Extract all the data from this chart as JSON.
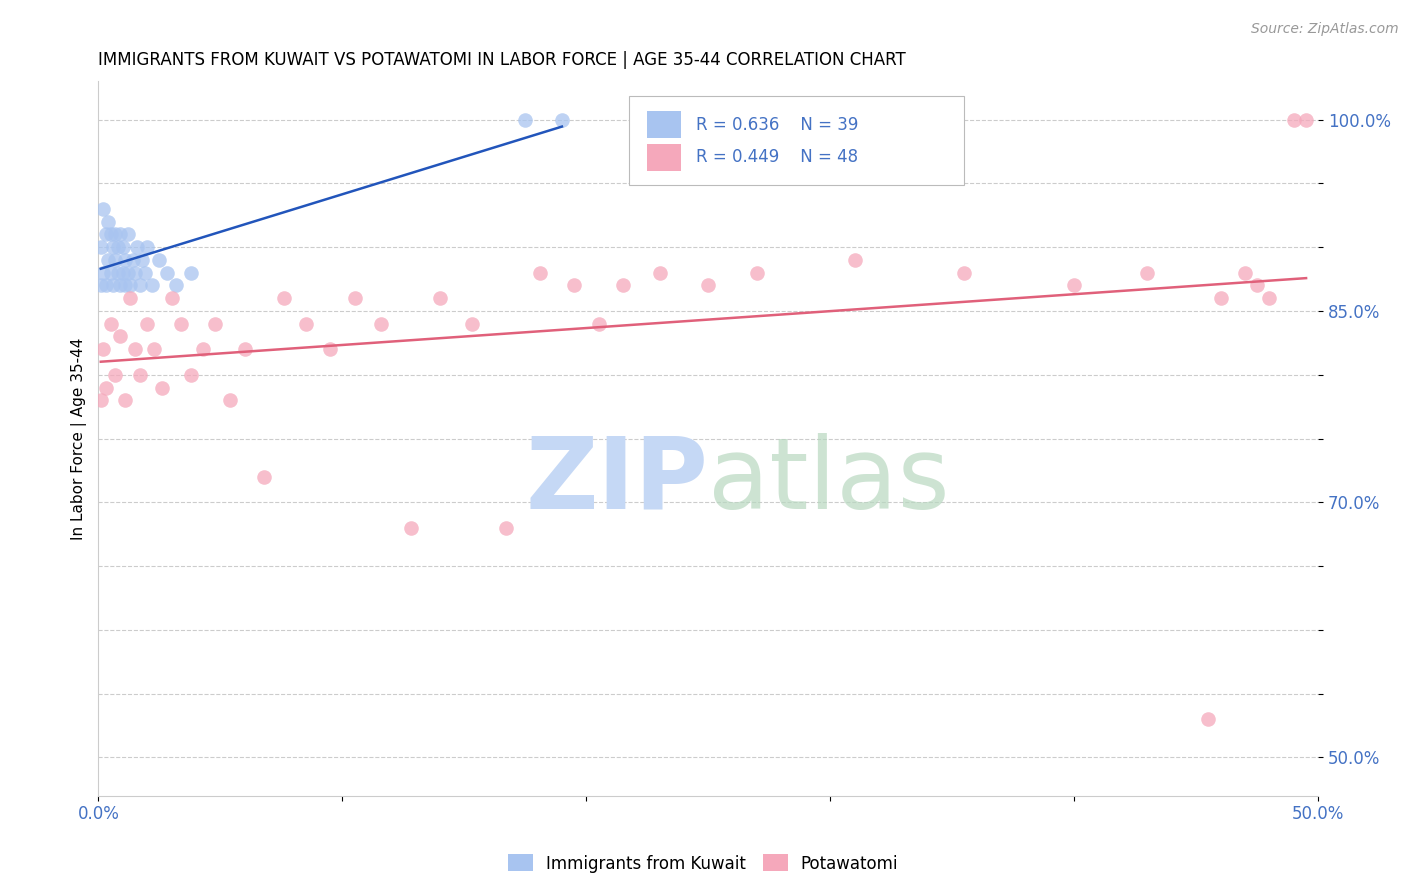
{
  "title": "IMMIGRANTS FROM KUWAIT VS POTAWATOMI IN LABOR FORCE | AGE 35-44 CORRELATION CHART",
  "source": "Source: ZipAtlas.com",
  "ylabel": "In Labor Force | Age 35-44",
  "xlim": [
    0.0,
    0.5
  ],
  "ylim": [
    0.47,
    1.03
  ],
  "xticks": [
    0.0,
    0.1,
    0.2,
    0.3,
    0.4,
    0.5
  ],
  "xticklabels": [
    "0.0%",
    "",
    "",
    "",
    "",
    "50.0%"
  ],
  "yticks": [
    0.5,
    0.55,
    0.6,
    0.65,
    0.7,
    0.75,
    0.8,
    0.85,
    0.9,
    0.95,
    1.0
  ],
  "yticklabels": [
    "50.0%",
    "",
    "",
    "",
    "70.0%",
    "",
    "",
    "85.0%",
    "",
    "",
    "100.0%"
  ],
  "legend_r1": "R = 0.636",
  "legend_n1": "N = 39",
  "legend_r2": "R = 0.449",
  "legend_n2": "N = 48",
  "color_kuwait": "#a8c4f0",
  "color_potawatomi": "#f5a8bb",
  "color_trendline_kuwait": "#2255bb",
  "color_trendline_potawatomi": "#e0607a",
  "color_legend_text": "#4472c4",
  "color_axis_ticks": "#4472c4",
  "kuwait_x": [
    0.001,
    0.001,
    0.002,
    0.002,
    0.003,
    0.003,
    0.004,
    0.004,
    0.005,
    0.005,
    0.006,
    0.006,
    0.007,
    0.007,
    0.008,
    0.008,
    0.009,
    0.009,
    0.01,
    0.01,
    0.011,
    0.011,
    0.012,
    0.012,
    0.013,
    0.014,
    0.015,
    0.016,
    0.017,
    0.018,
    0.019,
    0.02,
    0.022,
    0.025,
    0.028,
    0.032,
    0.038,
    0.175,
    0.19
  ],
  "kuwait_y": [
    0.87,
    0.9,
    0.88,
    0.93,
    0.87,
    0.91,
    0.89,
    0.92,
    0.88,
    0.91,
    0.87,
    0.9,
    0.89,
    0.91,
    0.88,
    0.9,
    0.87,
    0.91,
    0.88,
    0.9,
    0.87,
    0.89,
    0.88,
    0.91,
    0.87,
    0.89,
    0.88,
    0.9,
    0.87,
    0.89,
    0.88,
    0.9,
    0.87,
    0.89,
    0.88,
    0.87,
    0.88,
    1.0,
    1.0
  ],
  "potawatomi_x": [
    0.001,
    0.002,
    0.003,
    0.005,
    0.007,
    0.009,
    0.011,
    0.013,
    0.015,
    0.017,
    0.02,
    0.023,
    0.026,
    0.03,
    0.034,
    0.038,
    0.043,
    0.048,
    0.054,
    0.06,
    0.068,
    0.076,
    0.085,
    0.095,
    0.105,
    0.116,
    0.128,
    0.14,
    0.153,
    0.167,
    0.181,
    0.195,
    0.205,
    0.215,
    0.23,
    0.25,
    0.27,
    0.31,
    0.355,
    0.4,
    0.43,
    0.455,
    0.46,
    0.47,
    0.475,
    0.48,
    0.49,
    0.495
  ],
  "potawatomi_y": [
    0.78,
    0.82,
    0.79,
    0.84,
    0.8,
    0.83,
    0.78,
    0.86,
    0.82,
    0.8,
    0.84,
    0.82,
    0.79,
    0.86,
    0.84,
    0.8,
    0.82,
    0.84,
    0.78,
    0.82,
    0.72,
    0.86,
    0.84,
    0.82,
    0.86,
    0.84,
    0.68,
    0.86,
    0.84,
    0.68,
    0.88,
    0.87,
    0.84,
    0.87,
    0.88,
    0.87,
    0.88,
    0.89,
    0.88,
    0.87,
    0.88,
    0.53,
    0.86,
    0.88,
    0.87,
    0.86,
    1.0,
    1.0
  ]
}
